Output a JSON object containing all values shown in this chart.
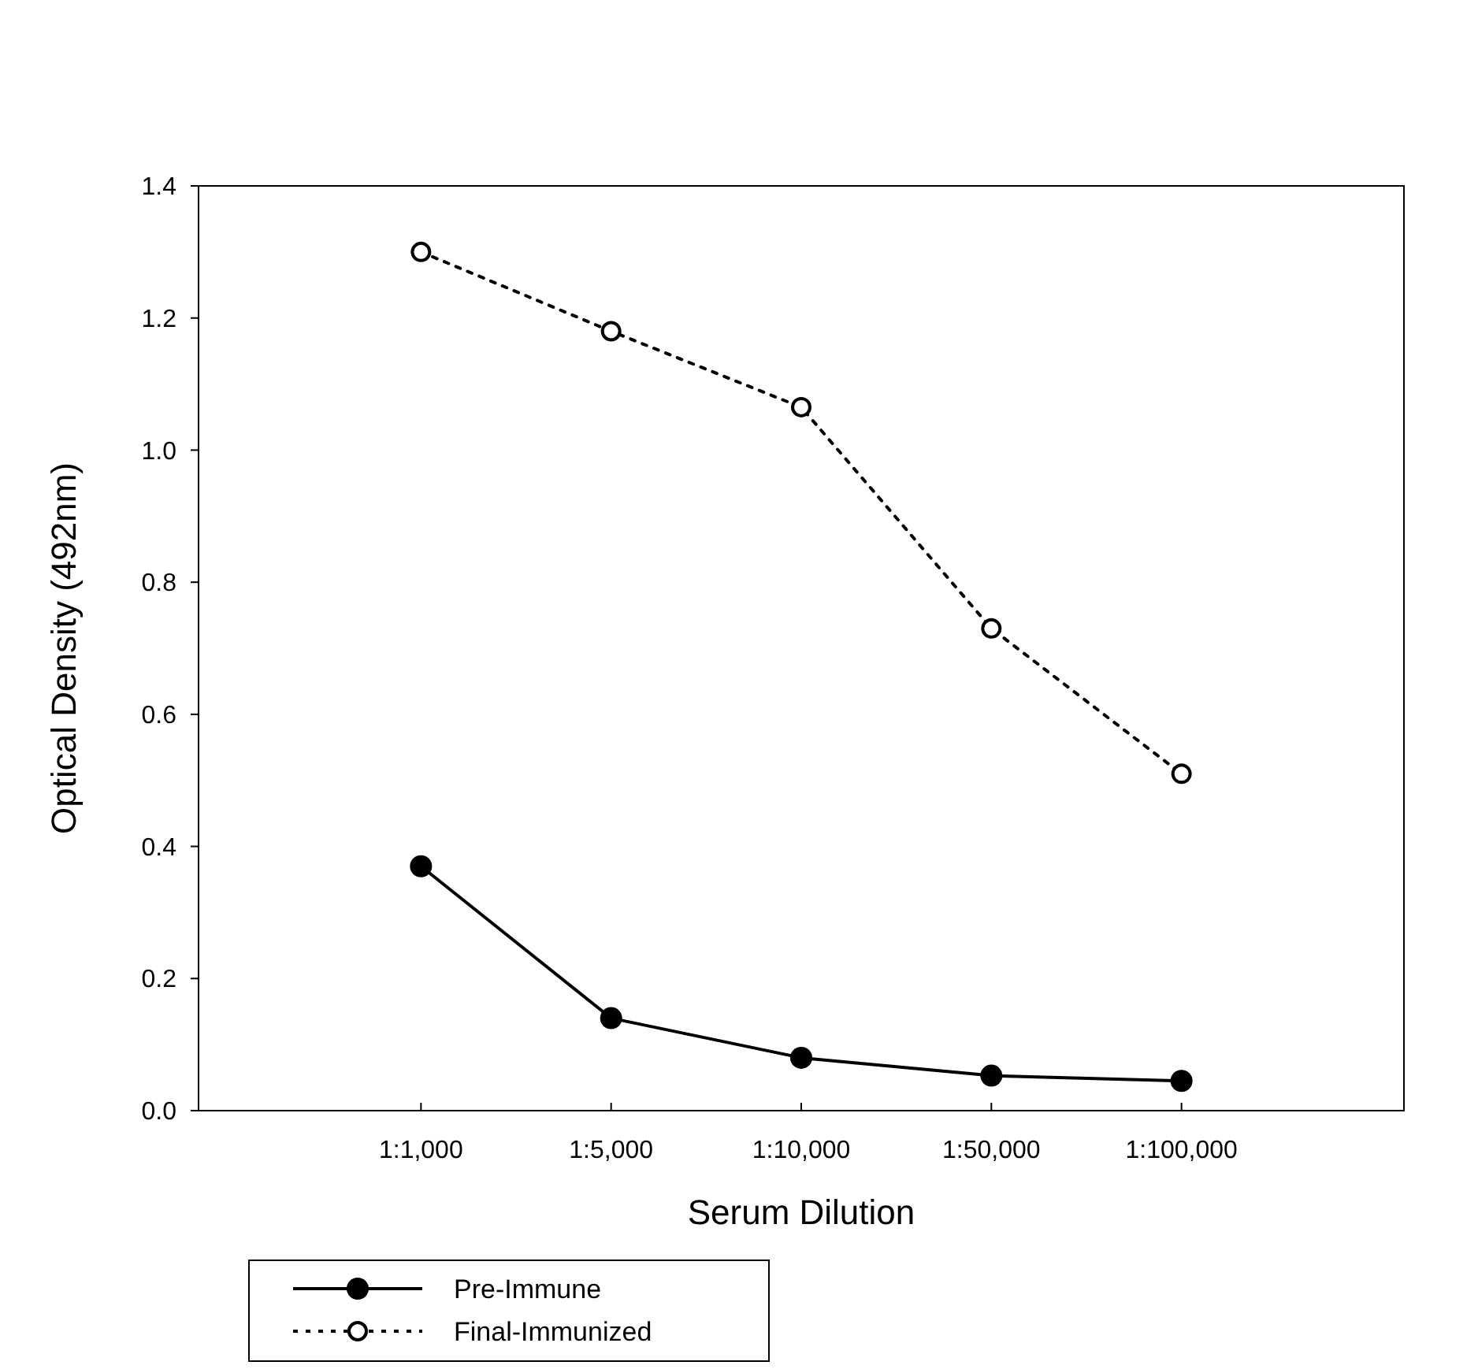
{
  "chart_data": {
    "type": "line",
    "xlabel": "Serum Dilution",
    "ylabel": "Optical Density (492nm)",
    "categories": [
      "1:1,000",
      "1:5,000",
      "1:10,000",
      "1:50,000",
      "1:100,000"
    ],
    "ylim": [
      0,
      1.4
    ],
    "yticks": [
      {
        "value": 0,
        "label": "0.0"
      },
      0.2,
      0.4,
      0.6,
      0.8,
      {
        "value": 1,
        "label": "1.0"
      },
      1.2,
      1.4
    ],
    "grid": false,
    "legend": "bottom left",
    "series": [
      {
        "name": "Pre-Immune",
        "color": "#000000",
        "marker": "circle",
        "line_style": "solid",
        "values": [
          0.37,
          0.14,
          0.08,
          0.053,
          0.045
        ]
      },
      {
        "name": "Final-Immunized",
        "color": "#000000",
        "marker": "circle-open",
        "line_style": "dotted",
        "values": [
          1.3,
          1.18,
          1.065,
          0.73,
          0.51
        ]
      }
    ]
  }
}
